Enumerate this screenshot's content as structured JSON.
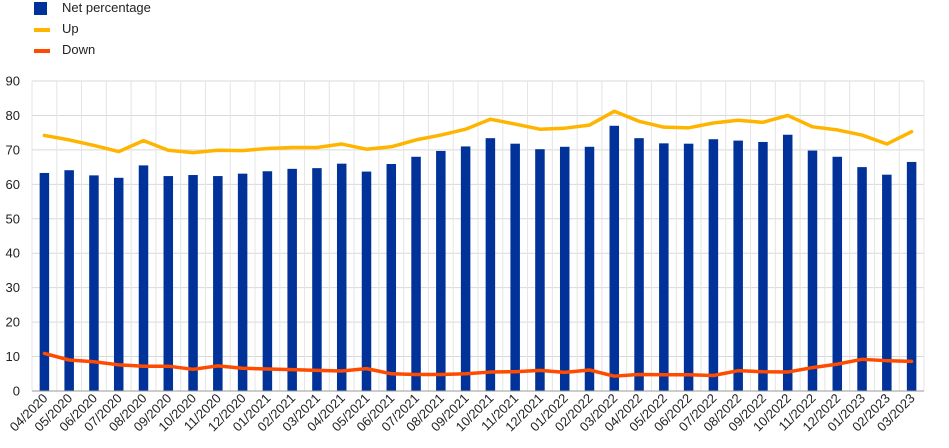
{
  "chart_data": {
    "type": "bar",
    "title": "",
    "xlabel": "",
    "ylabel": "",
    "ylim": [
      0,
      90
    ],
    "yticks": [
      0,
      10,
      20,
      30,
      40,
      50,
      60,
      70,
      80,
      90
    ],
    "grid": true,
    "legend_position": "top-left",
    "categories": [
      "04/2020",
      "05/2020",
      "06/2020",
      "07/2020",
      "08/2020",
      "09/2020",
      "10/2020",
      "11/2020",
      "12/2020",
      "01/2021",
      "02/2021",
      "03/2021",
      "04/2021",
      "05/2021",
      "06/2021",
      "07/2021",
      "08/2021",
      "09/2021",
      "10/2021",
      "11/2021",
      "12/2021",
      "01/2022",
      "02/2022",
      "03/2022",
      "04/2022",
      "05/2022",
      "06/2022",
      "07/2022",
      "08/2022",
      "09/2022",
      "10/2022",
      "11/2022",
      "12/2022",
      "01/2023",
      "02/2023",
      "03/2023"
    ],
    "series": [
      {
        "name": "Net percentage",
        "type": "bar",
        "color": "#003299",
        "values": [
          63.3,
          64.1,
          62.6,
          61.9,
          65.5,
          62.4,
          62.7,
          62.4,
          63.1,
          63.8,
          64.5,
          64.7,
          66.0,
          63.7,
          65.9,
          68.0,
          69.7,
          71.0,
          73.4,
          71.8,
          70.2,
          70.9,
          70.9,
          77.0,
          73.4,
          71.9,
          71.8,
          73.1,
          72.7,
          72.3,
          74.4,
          69.8,
          68.0,
          65.0,
          62.8,
          66.5
        ]
      },
      {
        "name": "Up",
        "type": "line",
        "color": "#FFB400",
        "values": [
          74.2,
          72.9,
          71.3,
          69.5,
          72.7,
          69.9,
          69.2,
          69.9,
          69.8,
          70.4,
          70.7,
          70.7,
          71.7,
          70.2,
          70.9,
          72.9,
          74.3,
          76.0,
          78.9,
          77.5,
          76.0,
          76.3,
          77.2,
          81.2,
          78.3,
          76.6,
          76.4,
          77.8,
          78.6,
          78.0,
          80.0,
          76.7,
          75.8,
          74.3,
          71.7,
          75.3
        ]
      },
      {
        "name": "Down",
        "type": "line",
        "color": "#FF4B00",
        "values": [
          10.9,
          9.0,
          8.5,
          7.6,
          7.2,
          7.2,
          6.3,
          7.3,
          6.6,
          6.4,
          6.2,
          6.0,
          5.8,
          6.5,
          5.0,
          4.8,
          4.8,
          5.0,
          5.5,
          5.6,
          6.0,
          5.4,
          6.1,
          4.3,
          4.8,
          4.7,
          4.7,
          4.5,
          5.9,
          5.6,
          5.5,
          6.8,
          7.8,
          9.2,
          8.8,
          8.6
        ]
      }
    ]
  }
}
